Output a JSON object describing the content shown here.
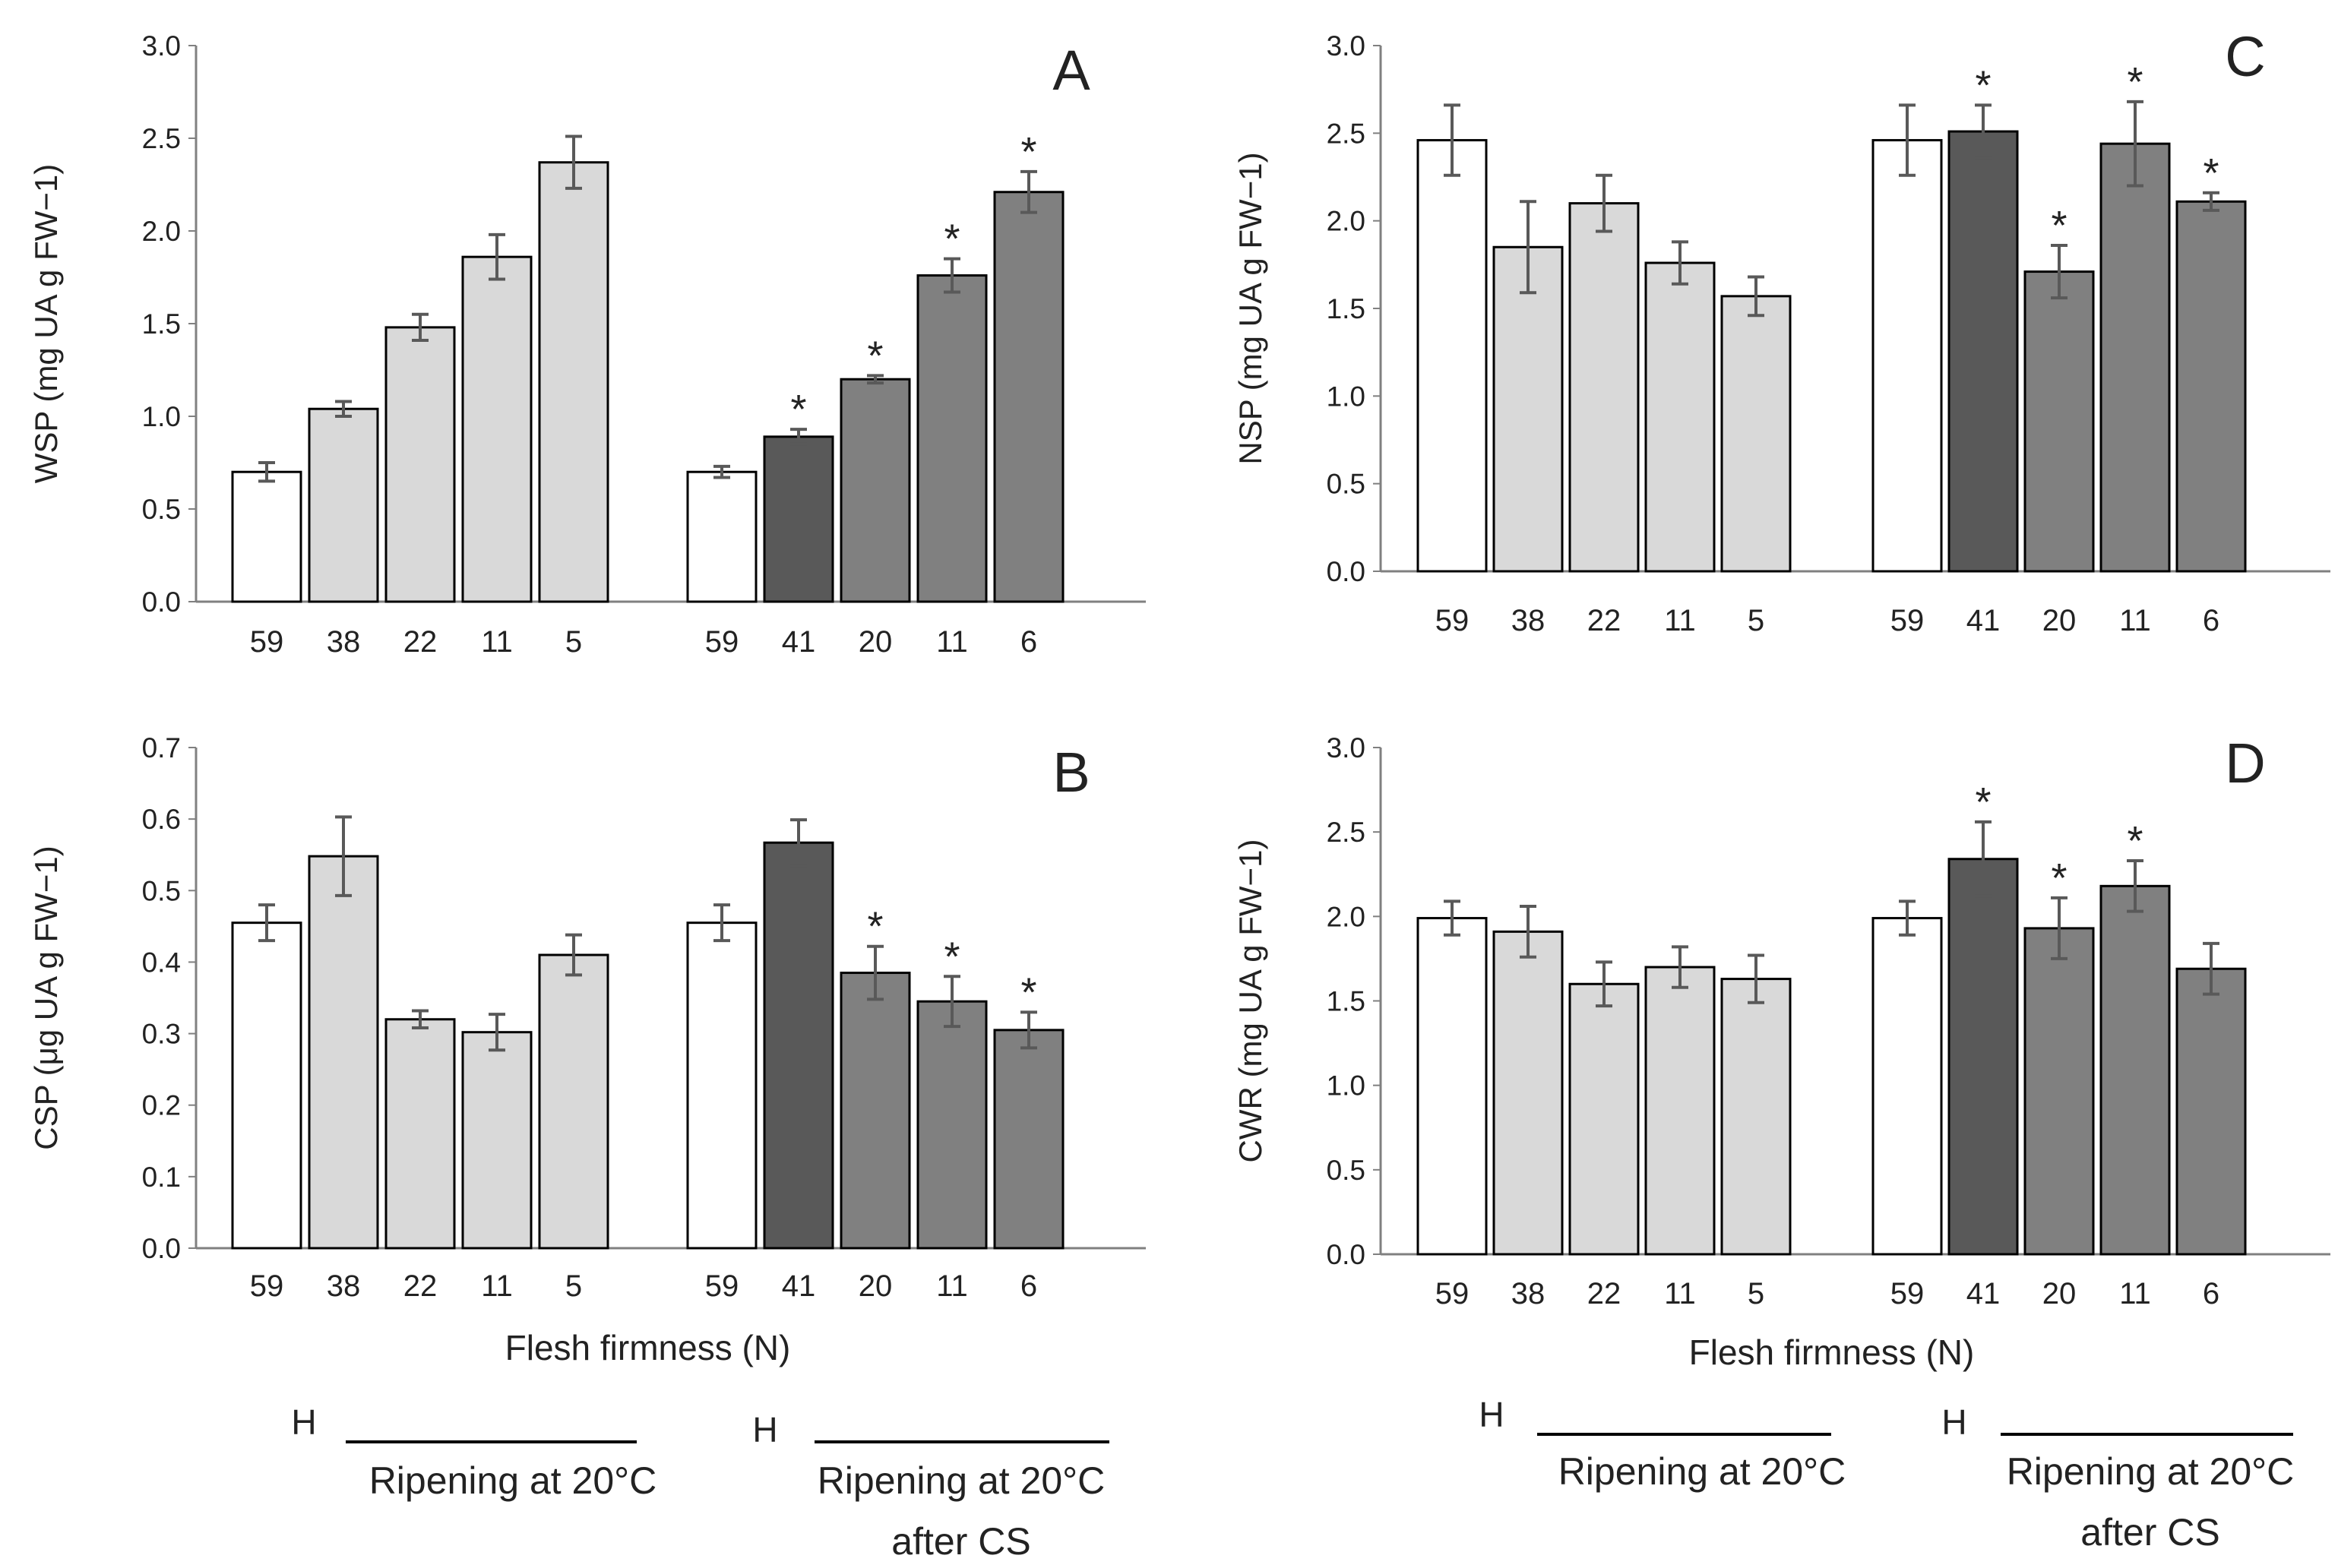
{
  "categories": {
    "ripening": [
      "59",
      "38",
      "22",
      "11",
      "5"
    ],
    "after_cs": [
      "59",
      "41",
      "20",
      "11",
      "6"
    ]
  },
  "colors": {
    "harvest": "#ffffff",
    "ripening": "#d9d9d9",
    "cs_dark": "#595959",
    "cs_mid": "#808080",
    "stroke": "#000000",
    "error": "#595959"
  },
  "chart_data": [
    {
      "panel": "A",
      "type": "bar",
      "ylabel": "WSP (mg UA g FW−1)",
      "ylim": [
        0,
        3.0
      ],
      "yticks": [
        "0.0",
        "0.5",
        "1.0",
        "1.5",
        "2.0",
        "2.5",
        "3.0"
      ],
      "xlabel": "",
      "groups": [
        "Ripening at 20°C",
        "Ripening at 20°C after CS"
      ],
      "values": [
        0.7,
        1.04,
        1.48,
        1.86,
        2.37,
        0.7,
        0.89,
        1.2,
        1.76,
        2.21
      ],
      "errors": [
        0.05,
        0.04,
        0.07,
        0.12,
        0.14,
        0.03,
        0.04,
        0.02,
        0.09,
        0.11
      ],
      "significant": [
        false,
        false,
        false,
        false,
        false,
        false,
        true,
        true,
        true,
        true
      ]
    },
    {
      "panel": "B",
      "type": "bar",
      "ylabel": "CSP (μg UA g FW−1)",
      "ylim": [
        0,
        0.7
      ],
      "yticks": [
        "0.0",
        "0.1",
        "0.2",
        "0.3",
        "0.4",
        "0.5",
        "0.6",
        "0.7"
      ],
      "xlabel": "Flesh firmness (N)",
      "groups": [
        "Ripening at 20°C",
        "Ripening at 20°C after CS"
      ],
      "values": [
        0.455,
        0.548,
        0.32,
        0.302,
        0.41,
        0.455,
        0.567,
        0.385,
        0.345,
        0.305
      ],
      "errors": [
        0.025,
        0.055,
        0.012,
        0.025,
        0.028,
        0.025,
        0.032,
        0.037,
        0.035,
        0.025
      ],
      "significant": [
        false,
        false,
        false,
        false,
        false,
        false,
        false,
        true,
        true,
        true
      ]
    },
    {
      "panel": "C",
      "type": "bar",
      "ylabel": "NSP (mg UA g FW−1)",
      "ylim": [
        0,
        3.0
      ],
      "yticks": [
        "0.0",
        "0.5",
        "1.0",
        "1.5",
        "2.0",
        "2.5",
        "3.0"
      ],
      "xlabel": "",
      "groups": [
        "Ripening at 20°C",
        "Ripening at 20°C after CS"
      ],
      "values": [
        2.46,
        1.85,
        2.1,
        1.76,
        1.57,
        2.46,
        2.51,
        1.71,
        2.44,
        2.11
      ],
      "errors": [
        0.2,
        0.26,
        0.16,
        0.12,
        0.11,
        0.2,
        0.15,
        0.15,
        0.24,
        0.05
      ],
      "significant": [
        false,
        false,
        false,
        false,
        false,
        false,
        true,
        true,
        true,
        true
      ]
    },
    {
      "panel": "D",
      "type": "bar",
      "ylabel": "CWR (mg UA g FW−1)",
      "ylim": [
        0,
        3.0
      ],
      "yticks": [
        "0.0",
        "0.5",
        "1.0",
        "1.5",
        "2.0",
        "2.5",
        "3.0"
      ],
      "xlabel": "Flesh firmness (N)",
      "groups": [
        "Ripening at 20°C",
        "Ripening at 20°C after CS"
      ],
      "values": [
        1.99,
        1.91,
        1.6,
        1.7,
        1.63,
        1.99,
        2.34,
        1.93,
        2.18,
        1.69
      ],
      "errors": [
        0.1,
        0.15,
        0.13,
        0.12,
        0.14,
        0.1,
        0.22,
        0.18,
        0.15,
        0.15
      ],
      "significant": [
        false,
        false,
        false,
        false,
        false,
        false,
        true,
        true,
        true,
        false
      ]
    }
  ],
  "legend": {
    "harvest_label": "H",
    "group1_label": "Ripening at 20°C",
    "group2_line1": "Ripening at 20°C",
    "group2_line2": "after CS"
  },
  "significance_marker": "*"
}
